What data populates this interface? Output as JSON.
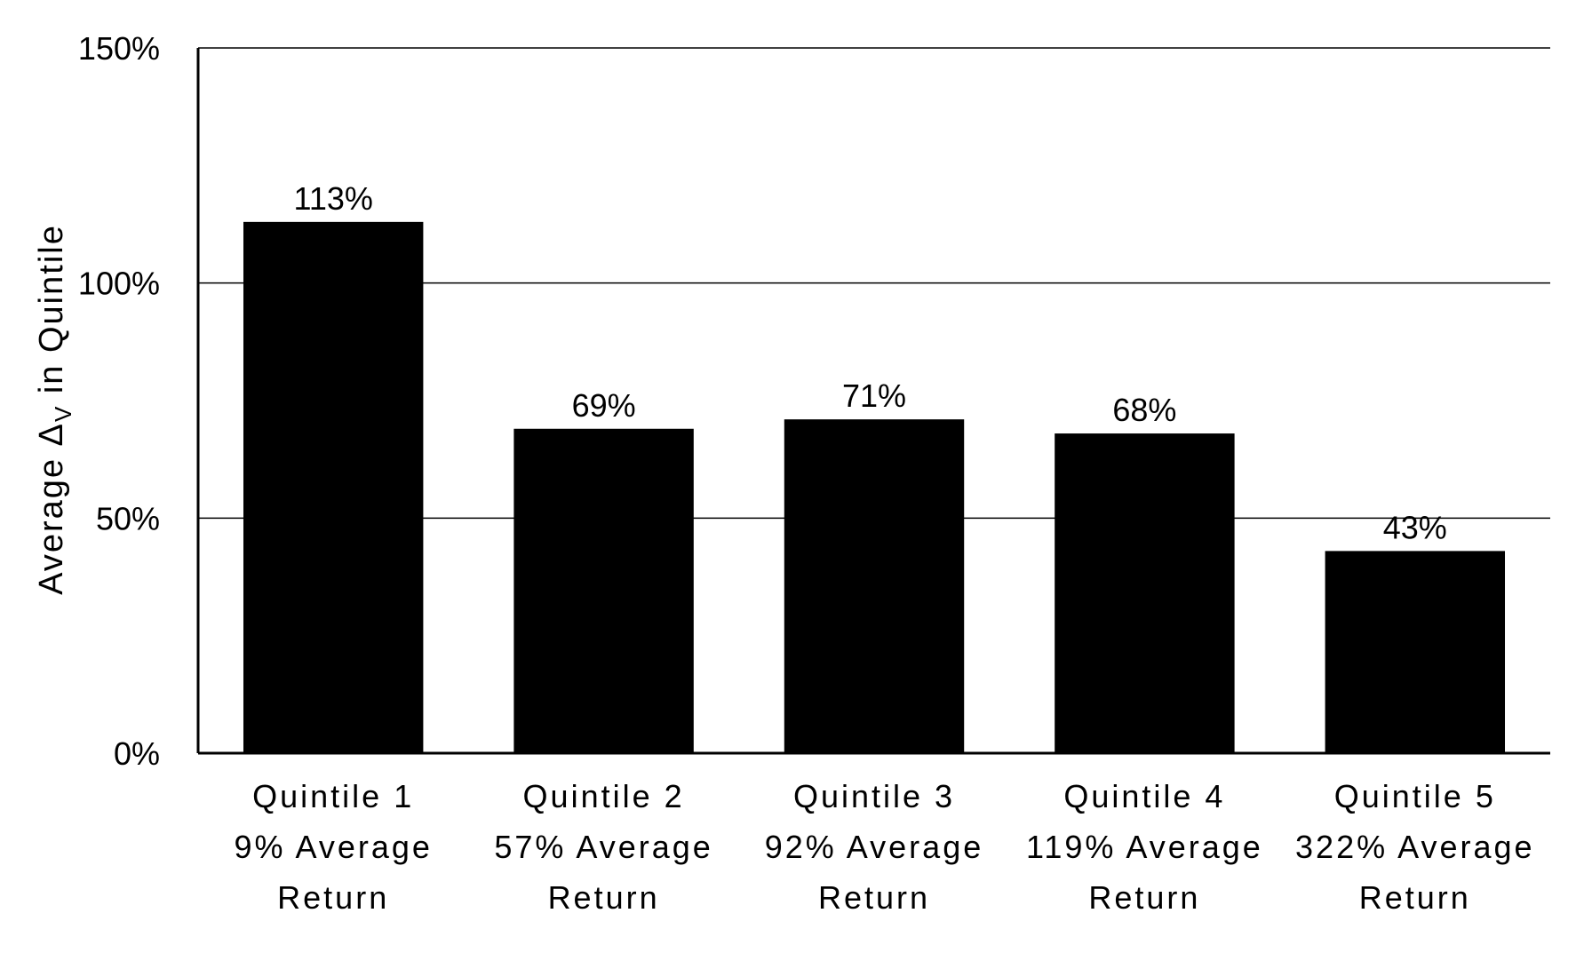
{
  "chart_data": {
    "type": "bar",
    "title": "",
    "xlabel": "",
    "ylabel": {
      "main": "Average Δ",
      "subscript": "V",
      "rest": " in Quintile"
    },
    "ylim": [
      0,
      150
    ],
    "y_ticks": [
      {
        "value": 0,
        "label": "0%"
      },
      {
        "value": 50,
        "label": "50%"
      },
      {
        "value": 100,
        "label": "100%"
      },
      {
        "value": 150,
        "label": "150%"
      }
    ],
    "grid": true,
    "legend": "none",
    "bar_color": "#000000",
    "categories": [
      [
        "Quintile 1",
        "9% Average",
        "Return"
      ],
      [
        "Quintile 2",
        "57% Average",
        "Return"
      ],
      [
        "Quintile 3",
        "92% Average",
        "Return"
      ],
      [
        "Quintile 4",
        "119% Average",
        "Return"
      ],
      [
        "Quintile 5",
        "322% Average",
        "Return"
      ]
    ],
    "values": [
      113,
      69,
      71,
      68,
      43
    ],
    "data_labels": [
      "113%",
      "69%",
      "71%",
      "68%",
      "43%"
    ]
  }
}
